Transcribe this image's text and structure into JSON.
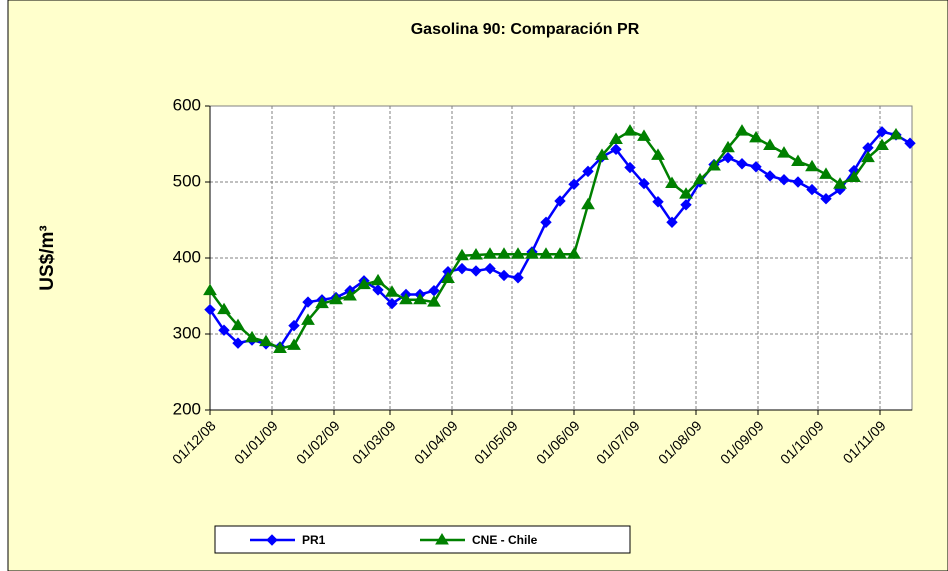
{
  "chart_data": {
    "type": "line",
    "title": "Gasolina 90: Comparación PR",
    "y_label": "US$/m³",
    "x": [
      "01/12/08",
      "08/12/08",
      "15/12/08",
      "22/12/08",
      "29/12/08",
      "05/01/09",
      "12/01/09",
      "19/01/09",
      "26/01/09",
      "02/02/09",
      "09/02/09",
      "16/02/09",
      "23/02/09",
      "02/03/09",
      "09/03/09",
      "16/03/09",
      "23/03/09",
      "30/03/09",
      "06/04/09",
      "13/04/09",
      "20/04/09",
      "27/04/09",
      "04/05/09",
      "11/05/09",
      "18/05/09",
      "25/05/09",
      "01/06/09",
      "08/06/09",
      "15/06/09",
      "22/06/09",
      "29/06/09",
      "06/07/09",
      "13/07/09",
      "20/07/09",
      "27/07/09",
      "03/08/09",
      "10/08/09",
      "17/08/09",
      "24/08/09",
      "31/08/09",
      "07/09/09",
      "14/09/09",
      "21/09/09",
      "28/09/09",
      "05/10/09",
      "12/10/09",
      "19/10/09",
      "26/10/09",
      "02/11/09",
      "09/11/09",
      "16/11/09"
    ],
    "series": [
      {
        "name": "PR1",
        "color": "#0000ff",
        "marker": "diamond",
        "values": [
          332,
          305,
          288,
          292,
          287,
          283,
          311,
          342,
          345,
          348,
          357,
          370,
          358,
          340,
          352,
          352,
          357,
          382,
          386,
          383,
          386,
          377,
          374,
          408,
          447,
          475,
          497,
          514,
          533,
          543,
          519,
          498,
          474,
          447,
          470,
          500,
          523,
          532,
          524,
          520,
          508,
          503,
          500,
          490,
          478,
          490,
          515,
          545,
          566,
          562,
          551
        ]
      },
      {
        "name": "CNE - Chile",
        "color": "#008000",
        "marker": "triangle",
        "values": [
          357,
          332,
          311,
          295,
          290,
          281,
          285,
          318,
          340,
          345,
          350,
          365,
          370,
          355,
          345,
          345,
          342,
          373,
          403,
          404,
          405,
          405,
          405,
          405,
          405,
          405,
          405,
          470,
          535,
          556,
          567,
          560,
          535,
          498,
          484,
          503,
          521,
          545,
          567,
          558,
          548,
          538,
          527,
          520,
          510,
          497,
          506,
          532,
          548,
          562,
          null
        ]
      }
    ],
    "xlim": [
      "01/12/08",
      "17/11/09"
    ],
    "xticks": [
      "01/12/08",
      "01/01/09",
      "01/02/09",
      "01/03/09",
      "01/04/09",
      "01/05/09",
      "01/06/09",
      "01/07/09",
      "01/08/09",
      "01/09/09",
      "01/10/09",
      "01/11/09"
    ],
    "ylim": [
      200,
      600
    ],
    "yticks": [
      200,
      300,
      400,
      500,
      600
    ],
    "grid": true,
    "legend": "bottom"
  }
}
